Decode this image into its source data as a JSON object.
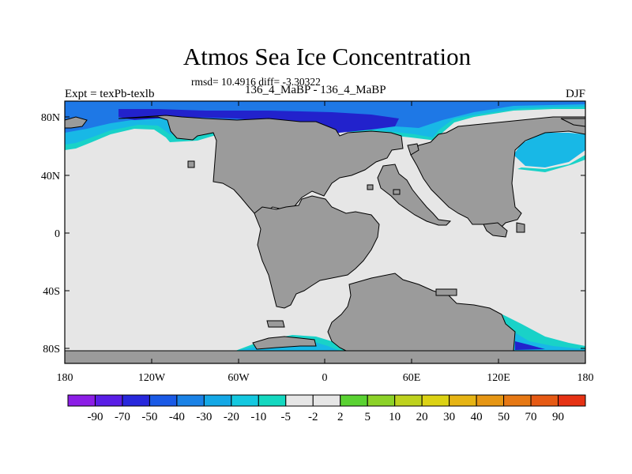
{
  "title": "Atmos Sea Ice Concentration",
  "stats": "rmsd= 10.4916 diff= -3.30322",
  "subtitle": "136_4_MaBP - 136_4_MaBP",
  "expt": "Expt = texPb-texlb",
  "season": "DJF",
  "map": {
    "lat_ticks": [
      "80N",
      "40N",
      "0",
      "40S",
      "80S"
    ],
    "lon_ticks": [
      "180",
      "120W",
      "60W",
      "0",
      "60E",
      "120E",
      "180"
    ],
    "colors": {
      "ocean": "#e6e6e6",
      "land": "#9b9b9b",
      "ice_dark": "#2222cc",
      "ice_mid": "#1e78e6",
      "ice_light": "#18b8e6",
      "ice_edge": "#19d2c8"
    }
  },
  "colorbar": {
    "labels": [
      "-90",
      "-70",
      "-50",
      "-40",
      "-30",
      "-20",
      "-10",
      "-5",
      "-2",
      "2",
      "5",
      "10",
      "20",
      "30",
      "40",
      "50",
      "70",
      "90"
    ],
    "colors": [
      "#8c1ee6",
      "#5a1ee6",
      "#2828dc",
      "#1a5ae6",
      "#1a82e6",
      "#14a8e6",
      "#14c8e0",
      "#14d8c0",
      "#e6e6e6",
      "#5ad232",
      "#8cd228",
      "#bed21e",
      "#dcd214",
      "#e6b414",
      "#e69614",
      "#e67814",
      "#e65a14",
      "#e63214"
    ]
  }
}
